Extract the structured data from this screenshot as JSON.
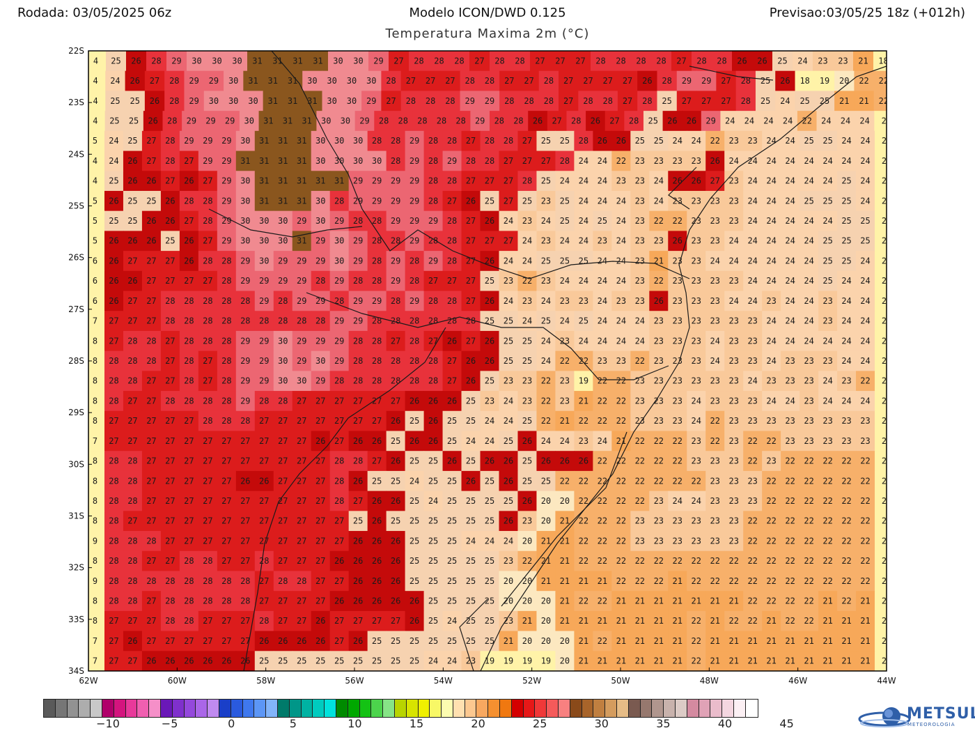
{
  "header": {
    "run": "Rodada: 03/05/2025 06z",
    "model": "Modelo ICON/DWD 0.125",
    "forecast": "Previsao:03/05/25 18z (+012h)",
    "variable": "Temperatura Maxima 2m (°C)"
  },
  "map": {
    "lat_labels": [
      "22S",
      "23S",
      "24S",
      "25S",
      "26S",
      "27S",
      "28S",
      "29S",
      "30S",
      "31S",
      "32S",
      "33S",
      "34S"
    ],
    "lon_labels": [
      "62W",
      "60W",
      "58W",
      "56W",
      "54W",
      "52W",
      "50W",
      "48W",
      "46W",
      "44W"
    ],
    "lat_range": [
      -34,
      -22
    ],
    "lon_range": [
      -62,
      -44
    ],
    "grid_rows": [
      "4 25 26 28 29 30 30 30 31 31 31 31 30 30 29 27 28 28 28 27 28 28 27 27 27 28 28 28 28 27 28 28 26 26 25 24 23 23 21 18 ",
      "4 24 26 27 28 29 29 30 31 31 31 30 30 30 30 28 27 27 27 28 28 27 27 28 27 27 27 27 26 28 29 29 27 28 25 26 18 19 20 22 22",
      "4 25 25 26 28 29 30 30 30 31 31 31 30 30 29 27 28 28 28 29 29 28 28 28 27 28 28 27 28 25 27 27 27 28 25 24 25 25 21 21 22",
      "4 25 25 26 28 29 29 29 30 31 31 31 30 30 29 28 28 28 28 28 29 28 28 26 27 28 26 27 28 25 26 26 29 24 24 24 24 22 24 24 24 2",
      "5 24 25 27 28 29 29 29 30 31 31 31 30 30 30 28 28 29 28 28 27 28 28 27 25 25 28 26 26 25 25 24 24 22 23 23 24 24 25 25 24 24 2",
      "4 24 26 27 28 27 29 29 31 31 31 31 30 30 30 30 28 29 28 29 28 28 27 27 27 28 24 24 22 23 23 23 23 26 24 24 24 24 24 24 24 24 2",
      "4 25 26 26 27 26 27 29 30 31 31 31 31 31 29 29 29 29 28 28 27 27 27 28 25 24 24 24 23 23 24 26 26 27 23 24 24 24 24 24 25 24 2",
      "5 26 25 25 26 28 28 29 30 31 31 31 30 28 29 29 29 29 28 27 26 25 27 25 23 25 24 24 24 23 24 23 23 23 23 24 24 24 25 25 25 24 2",
      "5 25 25 26 26 27 28 29 30 30 30 29 30 29 28 28 29 29 29 28 27 26 24 23 24 25 24 25 24 23 22 22 23 23 23 24 24 24 24 24 25 25 2",
      "5 26 26 26 25 26 27 29 30 30 30 31 29 30 29 28 28 29 28 28 27 27 27 24 23 24 24 23 24 23 23 26 23 23 24 24 24 24 24 25 25 25 2",
      "6 26 27 27 27 26 28 28 29 30 29 29 29 30 29 28 29 28 29 28 27 26 24 24 25 25 25 24 24 23 21 23 23 24 24 24 24 24 24 25 25 24 2",
      "6 26 26 27 27 27 27 28 29 29 29 29 28 29 28 28 29 28 27 27 27 25 23 22 23 24 24 24 24 23 22 23 23 23 23 24 24 24 24 25 24 24 2",
      "6 26 27 27 28 28 28 28 28 29 28 29 29 28 29 29 28 29 28 28 27 26 24 23 24 23 23 24 23 23 26 23 23 23 24 24 23 24 24 23 24 24 2",
      "7 27 27 27 28 28 28 28 28 28 28 28 28 29 29 28 28 28 28 28 28 25 25 24 25 24 25 24 24 24 23 23 23 23 23 23 24 24 24 23 24 24 2",
      "8 27 28 28 27 28 28 28 29 29 30 29 29 29 28 28 27 28 27 26 27 26 25 25 24 23 24 24 24 24 23 23 23 24 23 23 24 24 24 24 24 24 2",
      "8 28 28 28 27 28 27 28 29 29 30 29 30 29 28 28 28 28 28 27 26 26 25 25 24 22 22 23 23 22 23 23 23 24 23 23 24 23 23 23 24 24 2",
      "8 28 28 27 27 28 27 28 29 29 30 30 29 28 28 28 28 28 28 27 26 25 23 23 22 23 19 22 22 23 23 23 23 23 23 24 23 23 23 24 23 22 2",
      "8 28 27 27 28 28 28 28 29 28 28 27 27 27 27 27 27 26 26 26 25 23 24 23 22 23 21 22 22 23 23 23 24 23 23 23 24 24 23 24 24 24 2",
      "8 27 27 27 27 27 28 28 28 27 27 27 27 27 27 27 26 25 26 25 25 24 24 25 22 21 22 22 22 23 23 23 24 22 23 23 23 23 23 23 23 23 2",
      "7 27 27 27 27 27 27 27 27 27 27 27 26 27 26 26 25 26 26 25 24 24 25 26 24 24 23 24 21 22 22 22 23 22 23 22 22 23 23 23 23 23 2",
      "8 28 28 27 27 27 27 27 27 27 27 27 27 28 28 27 26 25 25 26 25 26 26 25 26 26 26 22 22 22 22 22 23 23 23 22 23 22 22 22 22 22 2",
      "8 28 28 27 27 27 27 27 26 26 27 27 27 28 26 25 25 24 25 25 26 25 26 25 25 22 22 22 22 22 22 22 22 23 23 23 22 22 22 22 22 22 2",
      "8 28 28 27 27 27 27 27 27 27 27 27 27 28 27 26 26 25 24 25 25 25 25 26 20 20 22 22 22 22 23 24 24 23 23 23 22 22 22 22 22 22 2",
      "8 28 27 27 27 27 27 27 27 27 27 27 27 27 25 26 25 25 25 25 25 25 26 23 20 21 22 22 22 23 23 23 23 23 23 22 22 22 22 22 22 22 2",
      "9 28 28 28 27 27 27 27 27 27 27 27 27 27 26 26 26 25 25 25 24 24 24 20 21 21 22 22 22 23 23 23 23 23 23 22 22 22 22 22 22 22 2",
      "8 28 28 27 27 28 28 27 27 28 27 27 27 26 26 26 26 25 25 25 25 25 23 22 21 21 22 22 22 22 22 22 22 22 22 22 22 22 22 22 22 22 2",
      "9 28 28 28 28 28 28 28 28 27 28 28 27 27 26 26 26 25 25 25 25 25 20 20 21 21 21 21 22 22 22 21 22 22 22 22 22 22 22 22 22 22 2",
      "8 28 28 27 28 28 28 28 28 27 27 27 27 26 26 26 26 26 25 25 25 25 20 20 20 21 22 22 21 21 21 21 21 21 21 22 22 22 22 21 22 21 2",
      "8 27 27 27 28 28 27 27 27 28 27 27 26 27 27 27 27 26 25 24 25 25 23 21 20 21 21 21 21 21 21 21 22 21 22 22 21 22 22 21 21 21 2",
      "7 27 26 27 27 27 27 27 27 26 26 26 26 27 26 25 25 25 25 25 25 25 21 20 20 20 21 22 21 21 21 21 22 21 21 21 21 21 21 21 21 21 2",
      "7 27 27 26 26 26 26 26 26 25 25 25 25 25 25 25 25 25 24 24 23 19 19 19 19 20 21 21 21 21 21 21 22 21 21 21 21 21 21 21 21 21 2"
    ],
    "state_labels": []
  },
  "colorbar": {
    "ticks": [
      "−10",
      "−5",
      "0",
      "5",
      "10",
      "15",
      "20",
      "25",
      "30",
      "35",
      "40",
      "45"
    ],
    "colors": [
      "#5a5a5a",
      "#767676",
      "#929292",
      "#adadad",
      "#c8c8c8",
      "#b0006a",
      "#d4147e",
      "#e8399a",
      "#f05fb0",
      "#f58fc8",
      "#6a18b8",
      "#7f30cc",
      "#9448dc",
      "#aa66e8",
      "#c08af0",
      "#1a3fc8",
      "#2a5ade",
      "#3f78ee",
      "#5c96f6",
      "#82b4fa",
      "#007a6a",
      "#009688",
      "#00b2a2",
      "#00cbbf",
      "#00e2dc",
      "#008a00",
      "#00a800",
      "#14c214",
      "#4cd44c",
      "#86e486",
      "#b8d400",
      "#d8e400",
      "#f0f000",
      "#f8f866",
      "#fcfcb0",
      "#ffe0b0",
      "#fcc890",
      "#f8a860",
      "#f59030",
      "#f07810",
      "#d40000",
      "#e61818",
      "#f03838",
      "#f55a5a",
      "#f88080",
      "#8a4a1a",
      "#a8642a",
      "#c07f40",
      "#d49c5e",
      "#e6bc86",
      "#7a5a50",
      "#96786e",
      "#b0968e",
      "#c8b2ac",
      "#dccbc6",
      "#d48aa0",
      "#e0a2b6",
      "#eabccb",
      "#f4d6e0",
      "#fcf0f4",
      "#ffffff"
    ]
  },
  "logo": {
    "name": "METSUL",
    "sub": "METEOROLOGIA"
  }
}
